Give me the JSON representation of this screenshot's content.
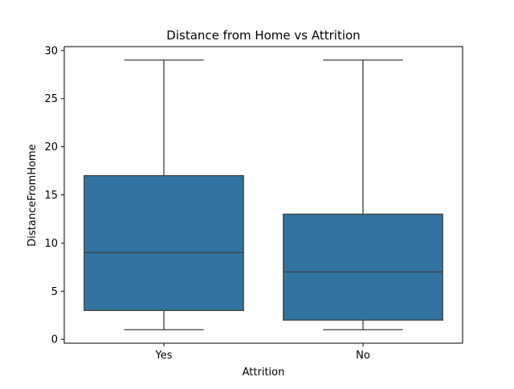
{
  "chart_data": {
    "type": "box",
    "title": "Distance from Home vs Attrition",
    "xlabel": "Attrition",
    "ylabel": "DistanceFromHome",
    "categories": [
      "Yes",
      "No"
    ],
    "boxes": [
      {
        "category": "Yes",
        "whisker_low": 1,
        "q1": 3,
        "median": 9,
        "q3": 17,
        "whisker_high": 29
      },
      {
        "category": "No",
        "whisker_low": 1,
        "q1": 2,
        "median": 7,
        "q3": 13,
        "whisker_high": 29
      }
    ],
    "ylim": [
      -0.4,
      30.4
    ],
    "yticks": [
      0,
      5,
      10,
      15,
      20,
      25,
      30
    ],
    "box_color": "#3274a1",
    "line_color": "#3d3d3d",
    "grid": false,
    "legend": "none"
  }
}
